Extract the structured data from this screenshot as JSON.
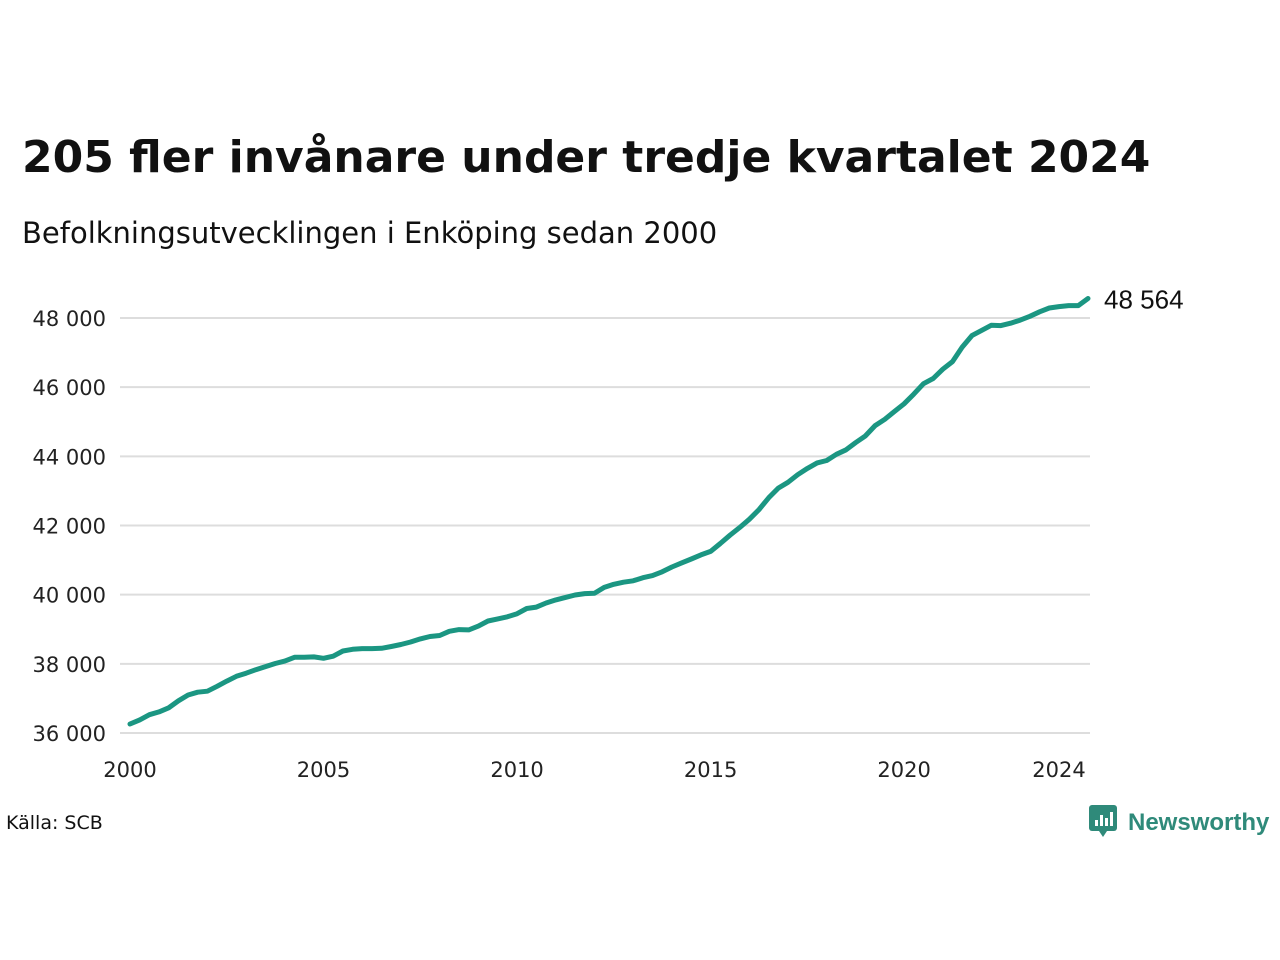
{
  "header": {
    "title": "205 fler invånare under tredje kvartalet 2024",
    "subtitle": "Befolkningsutvecklingen i Enköping sedan 2000"
  },
  "footer": {
    "source": "Källa: SCB",
    "brand": "Newsworthy",
    "brand_icon": "newsworthy-logo-icon"
  },
  "colors": {
    "line": "#1b9682",
    "grid": "#dddddd",
    "brand": "#2f8a7a"
  },
  "chart_data": {
    "type": "line",
    "x_ticks": [
      2000,
      2005,
      2010,
      2015,
      2020,
      2024
    ],
    "y_ticks": [
      "36 000",
      "38 000",
      "40 000",
      "42 000",
      "44 000",
      "46 000",
      "48 000"
    ],
    "y_tick_values": [
      36000,
      38000,
      40000,
      42000,
      44000,
      46000,
      48000
    ],
    "xlim": [
      2000.0,
      2024.75
    ],
    "ylim": [
      36000,
      48564
    ],
    "grid": true,
    "end_label": "48 564",
    "series": [
      {
        "x": [
          2000.0,
          2000.25,
          2000.5,
          2000.75,
          2001.0,
          2001.25,
          2001.5,
          2001.75,
          2002.0,
          2002.25,
          2002.5,
          2002.75,
          2003.0,
          2003.25,
          2003.5,
          2003.75,
          2004.0,
          2004.25,
          2004.5,
          2004.75,
          2005.0,
          2005.25,
          2005.5,
          2005.75,
          2006.0,
          2006.25,
          2006.5,
          2006.75,
          2007.0,
          2007.25,
          2007.5,
          2007.75,
          2008.0,
          2008.25,
          2008.5,
          2008.75,
          2009.0,
          2009.25,
          2009.5,
          2009.75,
          2010.0,
          2010.25,
          2010.5,
          2010.75,
          2011.0,
          2011.25,
          2011.5,
          2011.75,
          2012.0,
          2012.25,
          2012.5,
          2012.75,
          2013.0,
          2013.25,
          2013.5,
          2013.75,
          2014.0,
          2014.25,
          2014.5,
          2014.75,
          2015.0,
          2015.25,
          2015.5,
          2015.75,
          2016.0,
          2016.25,
          2016.5,
          2016.75,
          2017.0,
          2017.25,
          2017.5,
          2017.75,
          2018.0,
          2018.25,
          2018.5,
          2018.75,
          2019.0,
          2019.25,
          2019.5,
          2019.75,
          2020.0,
          2020.25,
          2020.5,
          2020.75,
          2021.0,
          2021.25,
          2021.5,
          2021.75,
          2022.0,
          2022.25,
          2022.5,
          2022.75,
          2023.0,
          2023.25,
          2023.5,
          2023.75,
          2024.0,
          2024.25,
          2024.5,
          2024.75
        ],
        "values": [
          36260,
          36380,
          36530,
          36610,
          36730,
          36930,
          37100,
          37180,
          37210,
          37350,
          37500,
          37640,
          37730,
          37830,
          37920,
          38010,
          38080,
          38190,
          38190,
          38200,
          38160,
          38220,
          38370,
          38420,
          38440,
          38440,
          38450,
          38500,
          38560,
          38630,
          38720,
          38790,
          38820,
          38940,
          38990,
          38980,
          39090,
          39240,
          39300,
          39360,
          39450,
          39600,
          39640,
          39760,
          39850,
          39920,
          39990,
          40030,
          40040,
          40210,
          40300,
          40360,
          40400,
          40490,
          40550,
          40660,
          40800,
          40920,
          41030,
          41150,
          41250,
          41480,
          41720,
          41940,
          42180,
          42460,
          42800,
          43080,
          43250,
          43470,
          43650,
          43810,
          43880,
          44060,
          44190,
          44400,
          44590,
          44890,
          45070,
          45300,
          45520,
          45800,
          46100,
          46250,
          46520,
          46740,
          47160,
          47490,
          47640,
          47790,
          47780,
          47850,
          47940,
          48050,
          48180,
          48290,
          48330,
          48359,
          48360,
          48564
        ]
      }
    ]
  }
}
